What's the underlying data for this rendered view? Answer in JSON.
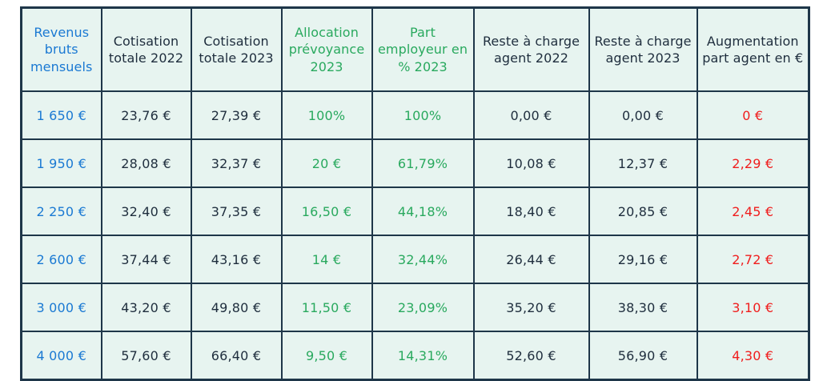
{
  "chart_data": {
    "type": "table",
    "columns": [
      {
        "label": "Revenus bruts mensuels",
        "color": "blue"
      },
      {
        "label": "Cotisation totale 2022",
        "color": "dark"
      },
      {
        "label": "Cotisation totale 2023",
        "color": "dark"
      },
      {
        "label": "Allocation prévoyance 2023",
        "color": "green"
      },
      {
        "label": "Part employeur en % 2023",
        "color": "green"
      },
      {
        "label": "Reste à charge agent 2022",
        "color": "dark"
      },
      {
        "label": "Reste à charge agent 2023",
        "color": "dark"
      },
      {
        "label": "Augmentation part agent en €",
        "color": "dark"
      }
    ],
    "body_column_colors": [
      "blue",
      "dark",
      "dark",
      "green",
      "green",
      "dark",
      "dark",
      "red"
    ],
    "rows": [
      [
        "1 650 €",
        "23,76 €",
        "27,39 €",
        "100%",
        "100%",
        "0,00 €",
        "0,00 €",
        "0 €"
      ],
      [
        "1 950 €",
        "28,08 €",
        "32,37 €",
        "20 €",
        "61,79%",
        "10,08 €",
        "12,37 €",
        "2,29 €"
      ],
      [
        "2 250 €",
        "32,40 €",
        "37,35 €",
        "16,50 €",
        "44,18%",
        "18,40 €",
        "20,85 €",
        "2,45 €"
      ],
      [
        "2 600 €",
        "37,44 €",
        "43,16 €",
        "14 €",
        "32,44%",
        "26,44 €",
        "29,16 €",
        "2,72 €"
      ],
      [
        "3 000 €",
        "43,20 €",
        "49,80 €",
        "11,50 €",
        "23,09%",
        "35,20 €",
        "38,30 €",
        "3,10 €"
      ],
      [
        "4 000 €",
        "57,60 €",
        "66,40 €",
        "9,50 €",
        "14,31%",
        "52,60 €",
        "56,90 €",
        "4,30 €"
      ]
    ]
  },
  "colors": {
    "page_background": "#ffffff",
    "cell_background": "#e7f4f0",
    "border": "#1e3649",
    "blue": "#1a79d3",
    "green": "#29a95e",
    "red": "#f01d1d",
    "dark": "#1e2d3d"
  }
}
